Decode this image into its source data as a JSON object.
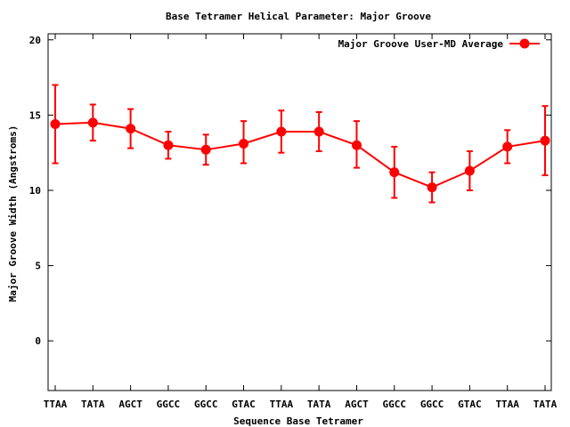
{
  "chart_data": {
    "type": "line",
    "title": "Base Tetramer Helical Parameter: Major Groove",
    "xlabel": "Sequence Base Tetramer",
    "ylabel": "Major Groove Width (Angstroms)",
    "categories": [
      "TTAA",
      "TATA",
      "AGCT",
      "GGCC",
      "GGCC",
      "GTAC",
      "TTAA",
      "TATA",
      "AGCT",
      "GGCC",
      "GGCC",
      "GTAC",
      "TTAA",
      "TATA"
    ],
    "ylim": [
      -3.3,
      20.4
    ],
    "yticks": [
      0,
      5,
      10,
      15,
      20
    ],
    "legend_position": "top-right",
    "grid": false,
    "series": [
      {
        "name": "Major Groove User-MD Average",
        "color": "#ff0000",
        "values": [
          14.4,
          14.5,
          14.1,
          13.0,
          12.7,
          13.1,
          13.9,
          13.9,
          13.0,
          11.2,
          10.2,
          11.3,
          12.9,
          13.3
        ],
        "err_low": [
          11.8,
          13.3,
          12.8,
          12.1,
          11.7,
          11.8,
          12.5,
          12.6,
          11.5,
          9.5,
          9.2,
          10.0,
          11.8,
          11.0
        ],
        "err_high": [
          17.0,
          15.7,
          15.4,
          13.9,
          13.7,
          14.6,
          15.3,
          15.2,
          14.6,
          12.9,
          11.2,
          12.6,
          14.0,
          15.6
        ]
      }
    ]
  }
}
